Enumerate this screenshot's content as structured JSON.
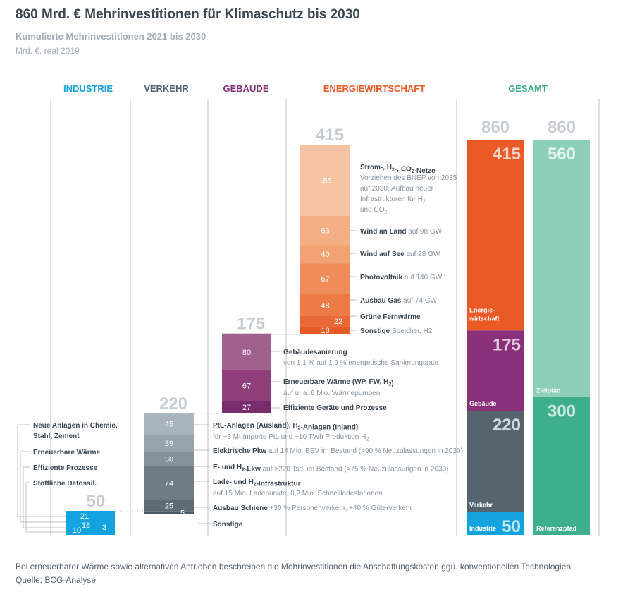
{
  "title": "860 Mrd. € Mehrinvestitionen für Klimaschutz bis 2030",
  "subtitle": "Kumulierte Mehrinvestitionen 2021 bis 2030",
  "unit": "Mrd. €, real 2019",
  "footnote": "Bei erneuerbarer Wärme sowie alternativen Antrieben beschreiben die Mehrinvestitionen die Anschaffungskosten ggü. konventionellen Technologien",
  "source": "Quelle: BCG-Analyse",
  "colors": {
    "industrie": "#13a4e0",
    "verkehr": "#566470",
    "gebaeude": "#8a2f7a",
    "energie": "#ea5a27",
    "gesamt": "#3fae8c",
    "gesamt_light": "#8ecfb9",
    "total_label": "#c7ccd1",
    "text_dark": "#3c4650",
    "text_grey": "#8a949c"
  },
  "chart_data": {
    "type": "bar",
    "title": "860 Mrd. € Mehrinvestitionen für Klimaschutz bis 2030",
    "subtitle": "Kumulierte Mehrinvestitionen 2021 bis 2030",
    "unit": "Mrd. €, real 2019",
    "sectors": [
      {
        "name": "INDUSTRIE",
        "total": 50,
        "components": [
          {
            "value": 21,
            "label": "Neue Anlagen in Chemie, Stahl, Zement"
          },
          {
            "value": 18,
            "label": "Erneuerbare Wärme"
          },
          {
            "value": 3,
            "label": "Effiziente Prozesse"
          },
          {
            "value": 10,
            "label": "Stoffliche Defossil."
          }
        ]
      },
      {
        "name": "VERKEHR",
        "total": 220,
        "components": [
          {
            "value": 45,
            "label": "PtL-Anlagen (Ausland), H2-Anlagen (Inland)",
            "detail": "für ~3 Mt Importe PtL und ~10 TWh Produktion H2"
          },
          {
            "value": 39,
            "label": "Elektrische Pkw",
            "detail": "auf 14 Mio. BEV im Bestand (>90 % Neuzulassungen in 2030)"
          },
          {
            "value": 30,
            "label": "E- und H2-Lkw",
            "detail": "auf >220 Tsd. im Bestand (>75 % Neuzulassungen in 2030)"
          },
          {
            "value": 74,
            "label": "Lade- und H2-Infrastruktur",
            "detail": "auf 15 Mio. Ladepunkte, 0,2 Mio. Schnellladestationen"
          },
          {
            "value": 25,
            "label": "Ausbau Schiene",
            "detail": "+30 % Personenverkehr, +40 % Güterverkehr"
          },
          {
            "value": 5,
            "label": "Sonstige",
            "detail": ""
          }
        ]
      },
      {
        "name": "GEBÄUDE",
        "total": 175,
        "components": [
          {
            "value": 80,
            "label": "Gebäudesanierung",
            "detail": "von 1,1 % auf 1,9 % energetische Sanierungsrate"
          },
          {
            "value": 67,
            "label": "Erneuerbare Wärme (WP, FW, H2)",
            "detail": "auf u. a. 6 Mio. Wärmepumpen"
          },
          {
            "value": 27,
            "label": "Effiziente Geräte und Prozesse",
            "detail": ""
          }
        ]
      },
      {
        "name": "ENERGIEWIRTSCHAFT",
        "total": 415,
        "components": [
          {
            "value": 155,
            "label": "Strom-, H2-, CO2-Netze",
            "detail": "Vorziehen des BNEP von 2035 auf 2030, Aufbau neuer Infrastrukturen für H2 und CO2"
          },
          {
            "value": 63,
            "label": "Wind an Land",
            "detail": "auf 98 GW"
          },
          {
            "value": 40,
            "label": "Wind auf See",
            "detail": "auf 28 GW"
          },
          {
            "value": 67,
            "label": "Photovoltaik",
            "detail": "auf 140 GW"
          },
          {
            "value": 48,
            "label": "Ausbau Gas",
            "detail": "auf 74 GW"
          },
          {
            "value": 22,
            "label": "Grüne Fernwärme",
            "detail": ""
          },
          {
            "value": 18,
            "label": "Sonstige",
            "detail": "Speicher, H2"
          }
        ]
      }
    ],
    "gesamt": {
      "name": "GESAMT",
      "by_sector": {
        "total": 860,
        "segments": [
          {
            "value": 415,
            "label": "Energie-wirtschaft"
          },
          {
            "value": 175,
            "label": "Gebäude"
          },
          {
            "value": 220,
            "label": "Verkehr"
          },
          {
            "value": 50,
            "label": "Industrie"
          }
        ]
      },
      "by_path": {
        "total": 860,
        "segments": [
          {
            "value": 560,
            "label": "Zielpfad"
          },
          {
            "value": 300,
            "label": "Referenzpfad"
          }
        ]
      }
    }
  }
}
